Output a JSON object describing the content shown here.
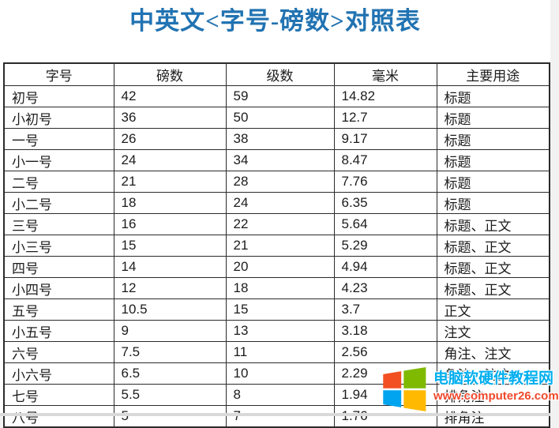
{
  "page": {
    "title": "中英文<字号-磅数>对照表"
  },
  "table": {
    "columns": [
      "字号",
      "磅数",
      "级数",
      "毫米",
      "主要用途"
    ],
    "rows": [
      [
        "初号",
        "42",
        "59",
        "14.82",
        "标题"
      ],
      [
        "小初号",
        "36",
        "50",
        "12.7",
        "标题"
      ],
      [
        "一号",
        "26",
        "38",
        "9.17",
        "标题"
      ],
      [
        "小一号",
        "24",
        "34",
        "8.47",
        "标题"
      ],
      [
        "二号",
        "21",
        "28",
        "7.76",
        "标题"
      ],
      [
        "小二号",
        "18",
        "24",
        "6.35",
        "标题"
      ],
      [
        "三号",
        "16",
        "22",
        "5.64",
        "标题、正文"
      ],
      [
        "小三号",
        "15",
        "21",
        "5.29",
        "标题、正文"
      ],
      [
        "四号",
        "14",
        "20",
        "4.94",
        "标题、正文"
      ],
      [
        "小四号",
        "12",
        "18",
        "4.23",
        "标题、正文"
      ],
      [
        "五号",
        "10.5",
        "15",
        "3.7",
        "正文"
      ],
      [
        "小五号",
        "9",
        "13",
        "3.18",
        "注文"
      ],
      [
        "六号",
        "7.5",
        "11",
        "2.56",
        "角注、注文"
      ],
      [
        "小六号",
        "6.5",
        "10",
        "2.29",
        "角注、注文"
      ],
      [
        "七号",
        "5.5",
        "8",
        "1.94",
        "排角注"
      ],
      [
        "八号",
        "5",
        "7",
        "1.76",
        "排角注"
      ]
    ]
  },
  "watermark": {
    "site_name": "电脑软硬件教程网",
    "url": "www.computer26.com",
    "logo_colors": {
      "top_left": "#F25022",
      "top_right": "#7FBA00",
      "bottom_left": "#00A4EF",
      "bottom_right": "#FFB900"
    },
    "name_color": "#00AEEF",
    "url_color": "#F0482B"
  },
  "colors": {
    "title": "#2173B2",
    "border": "#2b2b2b",
    "background": "#ffffff"
  }
}
